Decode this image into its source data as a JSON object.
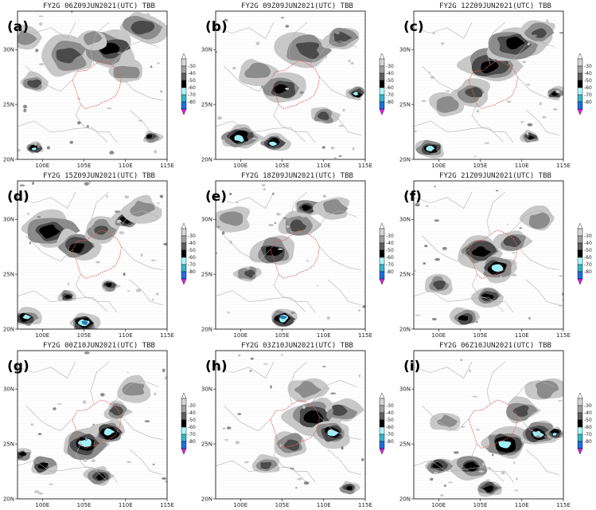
{
  "panels": [
    {
      "label": "(a)",
      "title": "FY2G  06Z09JUN2021(UTC) TBB"
    },
    {
      "label": "(b)",
      "title": "FY2G  09Z09JUN2021(UTC) TBB"
    },
    {
      "label": "(c)",
      "title": "FY2G  12Z09JUN2021(UTC) TBB"
    },
    {
      "label": "(d)",
      "title": "FY2G  15Z09JUN2021(UTC) TBB"
    },
    {
      "label": "(e)",
      "title": "FY2G  18Z09JUN2021(UTC) TBB"
    },
    {
      "label": "(f)",
      "title": "FY2G  21Z09JUN2021(UTC) TBB"
    },
    {
      "label": "(g)",
      "title": "FY2G  00Z10JUN2021(UTC) TBB"
    },
    {
      "label": "(h)",
      "title": "FY2G  03Z10JUN2021(UTC) TBB"
    },
    {
      "label": "(i)",
      "title": "FY2G  06Z10JUN2021(UTC) TBB"
    }
  ],
  "axes": {
    "lat_ticks": [
      "30N",
      "25N",
      "20N"
    ],
    "lon_ticks": [
      "100E",
      "105E",
      "110E",
      "115E"
    ],
    "lat_range": [
      20,
      33.5
    ],
    "lon_range": [
      97,
      115
    ]
  },
  "colorbar": {
    "levels": [
      "-30",
      "-40",
      "-50",
      "-60",
      "-70",
      "-80"
    ],
    "colors": [
      "#ffffff",
      "#d3d3d3",
      "#a0a0a0",
      "#606060",
      "#000000",
      "#aaf5fb",
      "#36b4c8",
      "#1e6ee0",
      "#e020e0"
    ]
  },
  "colors": {
    "province_border": "#e06060",
    "boundary": "#b0b0b0",
    "light": "#c8c8c8",
    "mid": "#8c8c8c",
    "dark": "#4a4a4a",
    "black": "#000000",
    "cyan": "#9ff0f6",
    "blue": "#2a7ab8",
    "magenta": "#d82bd8"
  }
}
